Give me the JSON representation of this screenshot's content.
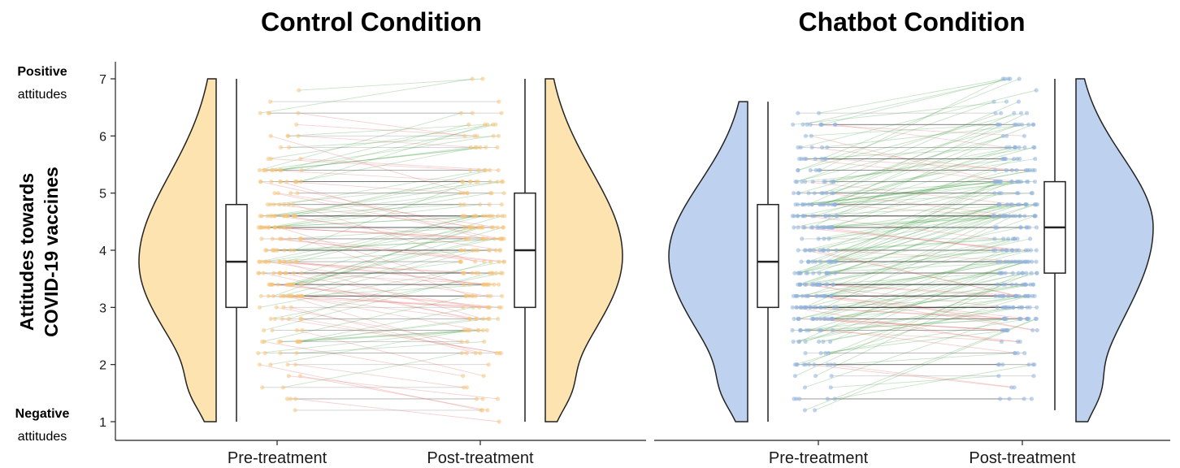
{
  "chart_data": [
    {
      "type": "raincloud",
      "title": "Control Condition",
      "categories": [
        "Pre-treatment",
        "Post-treatment"
      ],
      "ylabel": [
        "Attitudes towards",
        "COVID-19 vaccines"
      ],
      "y_end_labels": {
        "top": [
          "Positive",
          "attitudes"
        ],
        "bottom": [
          "Negative",
          "attitudes"
        ]
      },
      "ylim": [
        1,
        7
      ],
      "yticks": [
        "1",
        "2",
        "3",
        "4",
        "5",
        "6",
        "7"
      ],
      "fill_color": "#FCE3B0",
      "point_color": "#F5C57A",
      "line_colors": {
        "increase": "#3E9C3E",
        "decrease": "#E06666",
        "no_change": "#333333"
      },
      "series": [
        {
          "name": "Pre-treatment",
          "box": {
            "min": 1,
            "q1": 3,
            "median": 3.8,
            "q3": 4.8,
            "max": 7
          },
          "density_range": [
            1,
            7
          ],
          "mode": 3.8
        },
        {
          "name": "Post-treatment",
          "box": {
            "min": 1,
            "q1": 3,
            "median": 4.0,
            "q3": 5.0,
            "max": 7
          },
          "density_range": [
            1,
            7
          ],
          "mode": 3.9
        }
      ]
    },
    {
      "type": "raincloud",
      "title": "Chatbot Condition",
      "categories": [
        "Pre-treatment",
        "Post-treatment"
      ],
      "ylim": [
        1,
        7
      ],
      "fill_color": "#BED2F0",
      "point_color": "#8FB2DD",
      "line_colors": {
        "increase": "#3E9C3E",
        "decrease": "#E06666",
        "no_change": "#333333"
      },
      "series": [
        {
          "name": "Pre-treatment",
          "box": {
            "min": 1,
            "q1": 3,
            "median": 3.8,
            "q3": 4.8,
            "max": 6.6
          },
          "density_range": [
            1,
            6.6
          ],
          "mode": 3.9
        },
        {
          "name": "Post-treatment",
          "box": {
            "min": 1.2,
            "q1": 3.6,
            "median": 4.4,
            "q3": 5.2,
            "max": 7
          },
          "density_range": [
            1,
            7
          ],
          "mode": 4.4
        }
      ]
    }
  ]
}
